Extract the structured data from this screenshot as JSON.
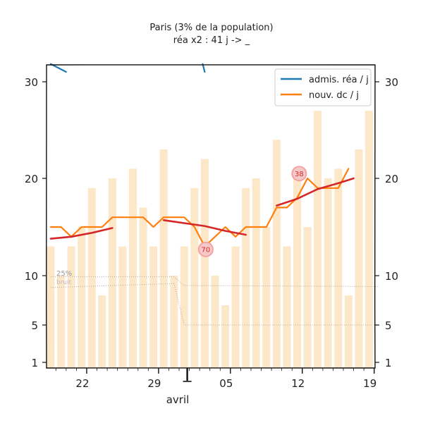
{
  "chart_data": {
    "type": "bar",
    "title": "Paris (3% de la population)",
    "subtitle": "réa x2 : 41 j -> _",
    "xlabel": "avril",
    "xlim": [
      0,
      32
    ],
    "ylim": [
      0,
      31.5
    ],
    "x_ticks": [
      {
        "x": 3.5,
        "label": "22"
      },
      {
        "x": 10.5,
        "label": "29"
      },
      {
        "x": 17.5,
        "label": "05"
      },
      {
        "x": 24.5,
        "label": "12"
      },
      {
        "x": 31.5,
        "label": "19"
      }
    ],
    "month_marker_x": 13.5,
    "y_ticks": [
      1,
      5,
      10,
      20,
      30
    ],
    "bars": {
      "color": "#fde7c9",
      "values": [
        13,
        10,
        13,
        15,
        19,
        8,
        20,
        13,
        21,
        17,
        13,
        23,
        10,
        13,
        19,
        22,
        10,
        7,
        13,
        19,
        20,
        15,
        24,
        13,
        21,
        15,
        27,
        20,
        21,
        8,
        23,
        27
      ]
    },
    "series": [
      {
        "name": "admis. réa / j",
        "color": "#1f77b4",
        "segments": [
          [
            [
              0,
              31.8
            ],
            [
              1.5,
              31
            ]
          ],
          [
            [
              14.8,
              31.8
            ],
            [
              15,
              31
            ]
          ]
        ]
      },
      {
        "name": "nouv. dc / j",
        "color": "#ff7f0e",
        "x": [
          0,
          1,
          2,
          3,
          4,
          5,
          6,
          7,
          8,
          9,
          10,
          11,
          12,
          13,
          14,
          15,
          16,
          17,
          18,
          19,
          20,
          21,
          22,
          23,
          24,
          25,
          26,
          27,
          28,
          29
        ],
        "values": [
          15,
          15,
          14,
          15,
          15,
          15,
          16,
          16,
          16,
          16,
          15,
          16,
          16,
          16,
          15,
          13,
          14,
          15,
          14,
          15,
          15,
          15,
          17,
          17,
          18,
          20,
          19,
          19,
          19,
          21
        ]
      },
      {
        "color": "#d62728",
        "segments": [
          [
            [
              0,
              13.8
            ],
            [
              2,
              14.0
            ],
            [
              4,
              14.4
            ],
            [
              6,
              14.9
            ]
          ],
          [
            [
              11,
              15.7
            ],
            [
              13,
              15.4
            ],
            [
              15,
              15.1
            ],
            [
              17,
              14.6
            ],
            [
              19,
              14.2
            ]
          ],
          [
            [
              22,
              17.2
            ],
            [
              24,
              17.9
            ],
            [
              26,
              18.9
            ],
            [
              28,
              19.5
            ],
            [
              29.5,
              20.0
            ]
          ]
        ]
      }
    ],
    "noise_band": {
      "label_top": "25%",
      "label_bottom": "bruit",
      "upper_x": [
        0,
        12,
        13,
        32
      ],
      "upper": [
        9.9,
        9.9,
        9.0,
        8.9
      ],
      "lower_x": [
        0,
        12,
        13,
        32
      ],
      "lower": [
        8.8,
        9.2,
        5.0,
        5.0
      ]
    },
    "annotations": [
      {
        "x": 15.1,
        "y": 12.7,
        "label": "70"
      },
      {
        "x": 24.2,
        "y": 20.5,
        "label": "38"
      }
    ],
    "legend_position": "top-right",
    "colors": {
      "axis": "#111111",
      "noise": "#aaaaaa",
      "badge_fill": "#f6c9c9",
      "badge_stroke": "#f4a3a3",
      "badge_text": "#d62728"
    }
  }
}
